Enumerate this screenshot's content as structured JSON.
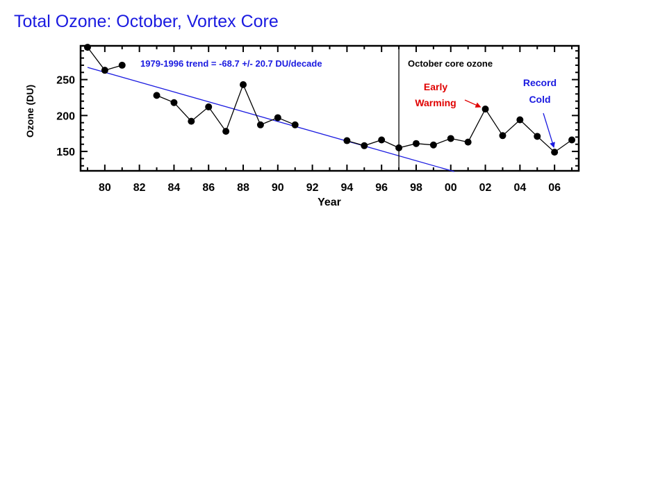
{
  "page_title": "Total Ozone: October, Vortex Core",
  "colors": {
    "title": "#1a1ae0",
    "trend": "#1a1ae0",
    "early_warming": "#e00000",
    "record_cold": "#1a1ae0",
    "data": "#000000"
  },
  "chart_data": {
    "type": "line",
    "title": "",
    "xlabel": "Year",
    "ylabel": "Ozone (DU)",
    "xlim": [
      1978.6,
      2007.4
    ],
    "ylim": [
      123,
      297
    ],
    "x_ticks": [
      1980,
      1982,
      1984,
      1986,
      1988,
      1990,
      1992,
      1994,
      1996,
      1998,
      2000,
      2002,
      2004,
      2006
    ],
    "x_tick_labels": [
      "80",
      "82",
      "84",
      "86",
      "88",
      "90",
      "92",
      "94",
      "96",
      "98",
      "00",
      "02",
      "04",
      "06"
    ],
    "y_ticks": [
      150,
      200,
      250
    ],
    "y_tick_labels": [
      "150",
      "200",
      "250"
    ],
    "grid": false,
    "series": [
      {
        "x": [
          1979,
          1980,
          1981,
          1983,
          1984,
          1985,
          1986,
          1987,
          1988,
          1989,
          1990,
          1991,
          1994,
          1995,
          1996,
          1997,
          1998,
          1999,
          2000,
          2001,
          2002,
          2003,
          2004,
          2005,
          2006,
          2007
        ],
        "values": [
          295,
          263,
          270,
          228,
          218,
          192,
          212,
          178,
          243,
          187,
          197,
          187,
          165,
          158,
          166,
          155,
          161,
          159,
          168,
          163,
          209,
          172,
          194,
          171,
          149,
          166
        ],
        "segments": [
          [
            0,
            3
          ],
          [
            3,
            12
          ],
          [
            12,
            26
          ]
        ]
      }
    ],
    "trend_line": {
      "label": "1979-1996 trend = -68.7 +/- 20.7 DU/decade",
      "x": [
        1979,
        2000.2
      ],
      "y": [
        267,
        122
      ]
    },
    "divider": {
      "x": 1997,
      "label": "October core ozone"
    },
    "annotations": [
      {
        "text": [
          "Early",
          "Warming"
        ],
        "target_x": 2002,
        "target_y": 209
      },
      {
        "text": [
          "Record",
          "Cold"
        ],
        "target_x": 2006,
        "target_y": 149
      }
    ]
  }
}
